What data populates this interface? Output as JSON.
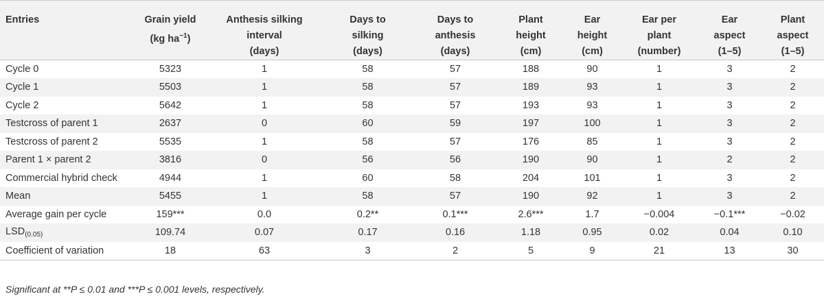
{
  "table": {
    "columns": [
      [
        "Entries"
      ],
      [
        "Grain yield",
        "(kg ha−1)"
      ],
      [
        "Anthesis silking",
        "interval",
        "(days)"
      ],
      [
        "Days to",
        "silking",
        "(days)"
      ],
      [
        "Days to",
        "anthesis",
        "(days)"
      ],
      [
        "Plant",
        "height",
        "(cm)"
      ],
      [
        "Ear",
        "height",
        "(cm)"
      ],
      [
        "Ear per",
        "plant",
        "(number)"
      ],
      [
        "Ear",
        "aspect",
        "(1–5)"
      ],
      [
        "Plant",
        "aspect",
        "(1–5)"
      ]
    ],
    "rows": [
      [
        "Cycle 0",
        "5323",
        "1",
        "58",
        "57",
        "188",
        "90",
        "1",
        "3",
        "2"
      ],
      [
        "Cycle 1",
        "5503",
        "1",
        "58",
        "57",
        "189",
        "93",
        "1",
        "3",
        "2"
      ],
      [
        "Cycle 2",
        "5642",
        "1",
        "58",
        "57",
        "193",
        "93",
        "1",
        "3",
        "2"
      ],
      [
        "Testcross of parent 1",
        "2637",
        "0",
        "60",
        "59",
        "197",
        "100",
        "1",
        "3",
        "2"
      ],
      [
        "Testcross of parent 2",
        "5535",
        "1",
        "58",
        "57",
        "176",
        "85",
        "1",
        "3",
        "2"
      ],
      [
        "Parent 1 × parent 2",
        "3816",
        "0",
        "56",
        "56",
        "190",
        "90",
        "1",
        "2",
        "2"
      ],
      [
        "Commercial hybrid check",
        "4944",
        "1",
        "60",
        "58",
        "204",
        "101",
        "1",
        "3",
        "2"
      ],
      [
        "Mean",
        "5455",
        "1",
        "58",
        "57",
        "190",
        "92",
        "1",
        "3",
        "2"
      ],
      [
        "Average gain per cycle",
        "159***",
        "0.0",
        "0.2**",
        "0.1***",
        "2.6***",
        "1.7",
        "−0.004",
        "−0.1***",
        "−0.02"
      ],
      [
        "LSD(0.05)",
        "109.74",
        "0.07",
        "0.17",
        "0.16",
        "1.18",
        "0.95",
        "0.02",
        "0.04",
        "0.10"
      ],
      [
        "Coefficient of variation",
        "18",
        "63",
        "3",
        "2",
        "5",
        "9",
        "21",
        "13",
        "30"
      ]
    ]
  },
  "footnote": "Significant at **P ≤ 0.01 and ***P ≤ 0.001 levels, respectively."
}
